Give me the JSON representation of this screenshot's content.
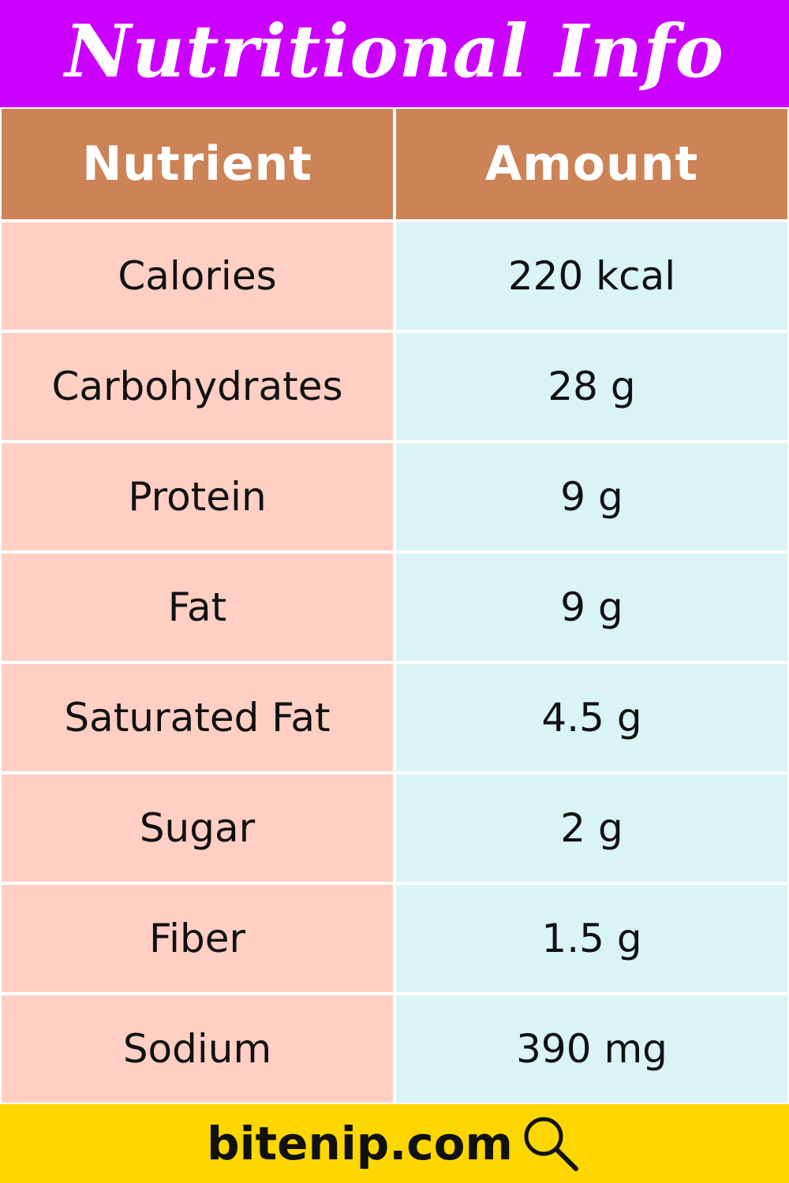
{
  "title": "Nutritional Info",
  "table": {
    "headers": [
      "Nutrient",
      "Amount"
    ],
    "rows": [
      {
        "nutrient": "Calories",
        "amount": "220 kcal"
      },
      {
        "nutrient": "Carbohydrates",
        "amount": "28 g"
      },
      {
        "nutrient": "Protein",
        "amount": "9 g"
      },
      {
        "nutrient": "Fat",
        "amount": "9 g"
      },
      {
        "nutrient": "Saturated Fat",
        "amount": "4.5 g"
      },
      {
        "nutrient": "Sugar",
        "amount": "2 g"
      },
      {
        "nutrient": "Fiber",
        "amount": "1.5 g"
      },
      {
        "nutrient": "Sodium",
        "amount": "390 mg"
      }
    ]
  },
  "footer": {
    "site": "bitenip.com",
    "icon": "magnifying-glass-icon"
  },
  "colors": {
    "banner": "#cc00ff",
    "header": "#cc8356",
    "nutrient_cell": "#ffcfc4",
    "amount_cell": "#daf3f4",
    "footer": "#ffd700"
  }
}
